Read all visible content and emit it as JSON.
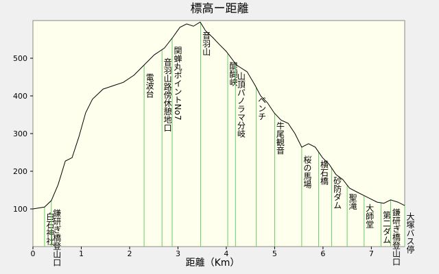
{
  "chart_data": {
    "type": "line",
    "title": "標高ー距離",
    "xlabel": "距離（Km）",
    "x": [
      0,
      0.24,
      0.38,
      0.52,
      0.67,
      0.81,
      0.95,
      1.09,
      1.23,
      1.45,
      1.66,
      1.87,
      2.09,
      2.3,
      2.51,
      2.72,
      2.89,
      3.04,
      3.18,
      3.32,
      3.46,
      3.57,
      3.72,
      3.86,
      4.0,
      4.21,
      4.43,
      4.6,
      4.71,
      4.85,
      4.99,
      5.13,
      5.28,
      5.42,
      5.56,
      5.7,
      5.84,
      5.99,
      6.13,
      6.27,
      6.41,
      6.55,
      6.7,
      6.84,
      6.98,
      7.12,
      7.26,
      7.4,
      7.55,
      7.69
    ],
    "values": [
      100,
      105,
      122,
      164,
      227,
      236,
      291,
      355,
      391,
      418,
      427,
      436,
      455,
      482,
      509,
      527,
      555,
      582,
      591,
      585,
      596,
      573,
      555,
      536,
      518,
      482,
      464,
      427,
      400,
      382,
      355,
      336,
      327,
      300,
      264,
      273,
      264,
      236,
      218,
      191,
      178,
      155,
      145,
      136,
      127,
      118,
      115,
      124,
      118,
      109
    ],
    "color": "#000000",
    "landmarks": [
      {
        "x": 0.24,
        "label": "白石神社"
      },
      {
        "x": 0.38,
        "label": "鎌研ぎ橋登山口"
      },
      {
        "x": 2.3,
        "label": "電波台"
      },
      {
        "x": 2.67,
        "label": "音羽山路傍休憩地口"
      },
      {
        "x": 2.88,
        "label": "関蝉丸ポイントNo7"
      },
      {
        "x": 3.47,
        "label": "音羽山"
      },
      {
        "x": 4.03,
        "label": "醍醐峡"
      },
      {
        "x": 4.19,
        "label": "山頂パノラマ分岐"
      },
      {
        "x": 4.62,
        "label": "ベンチ"
      },
      {
        "x": 5.0,
        "label": "牛尾観音"
      },
      {
        "x": 5.56,
        "label": "桜の馬場"
      },
      {
        "x": 5.91,
        "label": "横石橋"
      },
      {
        "x": 6.18,
        "label": "砂防ダム"
      },
      {
        "x": 6.5,
        "label": "聖滝"
      },
      {
        "x": 6.85,
        "label": "大師堂"
      },
      {
        "x": 7.2,
        "label": "第二ダム"
      },
      {
        "x": 7.4,
        "label": "鎌研ぎ橋登山口"
      },
      {
        "x": 7.69,
        "label": "大塚バス停"
      }
    ],
    "landmark_color": "#66cc66",
    "xlim": [
      0,
      7.69
    ],
    "xticks": [
      0,
      1,
      2,
      3,
      4,
      5,
      6,
      7
    ],
    "ylim": [
      0,
      600
    ],
    "yticks": [
      100,
      200,
      300,
      400,
      500
    ]
  }
}
